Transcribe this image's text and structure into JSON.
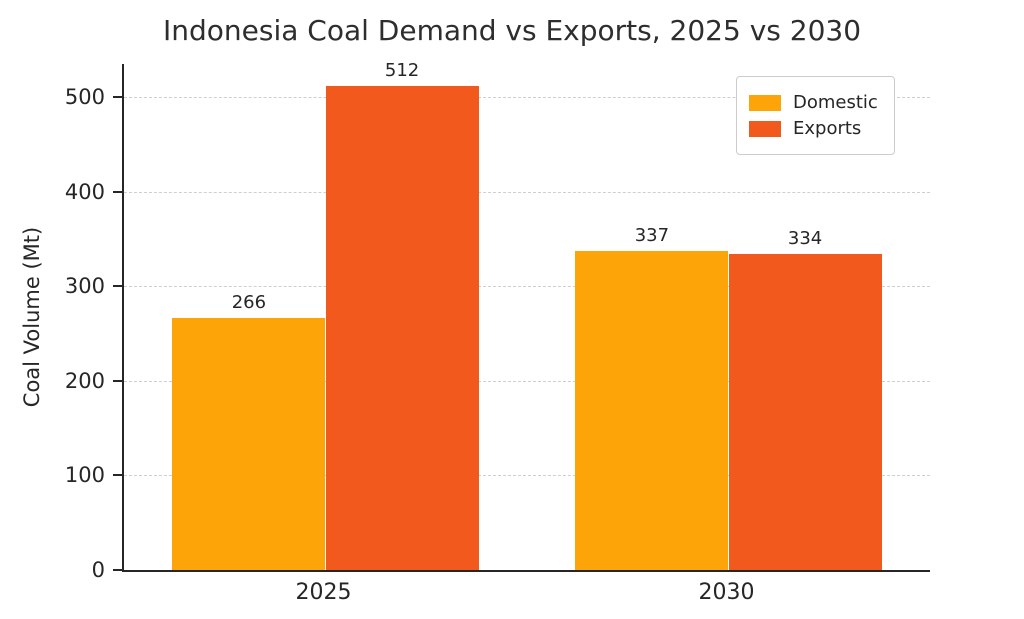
{
  "chart_data": {
    "type": "bar",
    "title": "Indonesia Coal Demand vs Exports, 2025 vs 2030",
    "ylabel": "Coal Volume (Mt)",
    "xlabel": "",
    "categories": [
      "2025",
      "2030"
    ],
    "series": [
      {
        "name": "Domestic",
        "color": "#fca408",
        "values": [
          266,
          337
        ]
      },
      {
        "name": "Exports",
        "color": "#f1591d",
        "values": [
          512,
          334
        ]
      }
    ],
    "ylim": [
      0,
      535
    ],
    "yticks": [
      0,
      100,
      200,
      300,
      400,
      500
    ],
    "grid": "horizontal-dashed",
    "legend_position": "upper-right",
    "value_labels": true
  }
}
